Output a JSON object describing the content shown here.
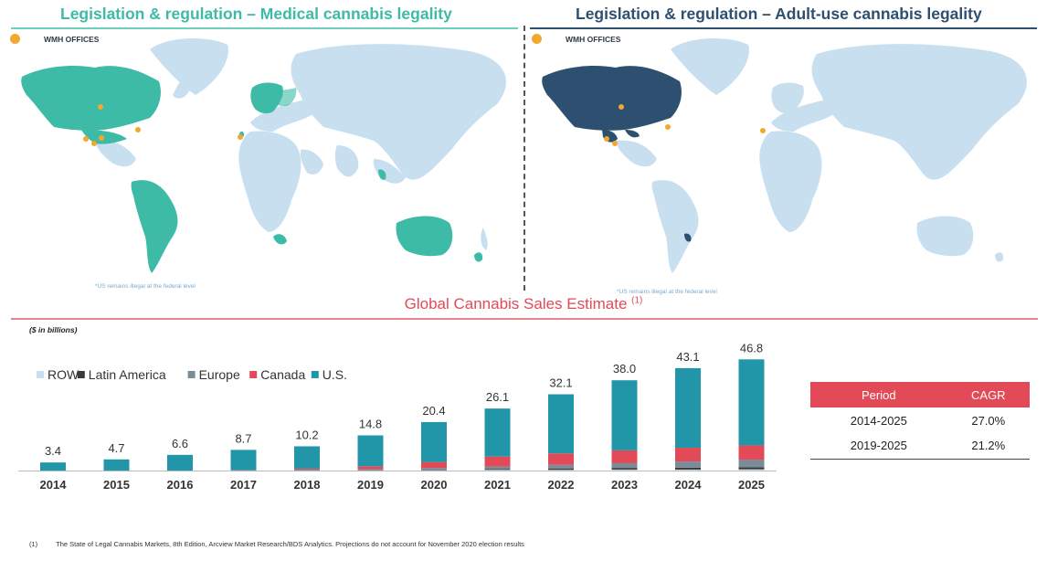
{
  "maps": {
    "left": {
      "title": "Legislation & regulation – Medical cannabis legality",
      "legend": "WMH OFFICES",
      "note": "*US remains illegal at the federal level",
      "highlight_color": "#3dbba6",
      "base_color": "#c8dff0"
    },
    "right": {
      "title": "Legislation & regulation – Adult-use cannabis legality",
      "legend": "WMH OFFICES",
      "note": "*US remains illegal at the federal level",
      "highlight_color": "#2d5070",
      "base_color": "#c8dff0"
    },
    "office_color": "#f0a830"
  },
  "sales": {
    "title": "Global Cannabis Sales Estimate",
    "title_sup": "(1)",
    "units": "($ in billions)"
  },
  "chart_data": {
    "type": "bar",
    "stacked": true,
    "categories": [
      "2014",
      "2015",
      "2016",
      "2017",
      "2018",
      "2019",
      "2020",
      "2021",
      "2022",
      "2023",
      "2024",
      "2025"
    ],
    "totals": [
      3.4,
      4.7,
      6.6,
      8.7,
      10.2,
      14.8,
      20.4,
      26.1,
      32.1,
      38.0,
      43.1,
      46.8
    ],
    "totals_labels": [
      "3.4",
      "4.7",
      "6.6",
      "8.7",
      "10.2",
      "14.8",
      "20.4",
      "26.1",
      "32.1",
      "38.0",
      "43.1",
      "46.8"
    ],
    "series": [
      {
        "name": "ROW",
        "color": "#c8dff0",
        "values": [
          0,
          0,
          0,
          0,
          0.1,
          0.1,
          0.2,
          0.3,
          0.3,
          0.4,
          0.4,
          0.5
        ]
      },
      {
        "name": "Latin America",
        "color": "#3a3a3a",
        "values": [
          0,
          0,
          0,
          0,
          0.1,
          0.2,
          0.3,
          0.4,
          0.6,
          0.7,
          0.8,
          0.9
        ]
      },
      {
        "name": "Europe",
        "color": "#7b8c99",
        "values": [
          0,
          0,
          0,
          0.1,
          0.2,
          0.3,
          0.6,
          1.0,
          1.5,
          2.0,
          2.6,
          3.2
        ]
      },
      {
        "name": "Canada",
        "color": "#e24a57",
        "values": [
          0,
          0,
          0,
          0.1,
          0.4,
          1.2,
          2.5,
          4.2,
          4.8,
          5.4,
          5.8,
          6.0
        ]
      },
      {
        "name": "U.S.",
        "color": "#2196a8",
        "values": [
          3.4,
          4.7,
          6.6,
          8.5,
          9.4,
          13.0,
          16.8,
          20.2,
          24.9,
          29.5,
          33.5,
          36.2
        ]
      }
    ],
    "ylim": [
      0,
      50
    ],
    "legend_position": "top-left",
    "grid": false
  },
  "cagr_table": {
    "headers": [
      "Period",
      "CAGR"
    ],
    "rows": [
      [
        "2014-2025",
        "27.0%"
      ],
      [
        "2019-2025",
        "21.2%"
      ]
    ]
  },
  "footnote": {
    "num": "(1)",
    "text": "The State of Legal Cannabis Markets, 8th Edition, Arcview Market Research/BDS Analytics.  Projections do not account for November 2020 election results"
  }
}
